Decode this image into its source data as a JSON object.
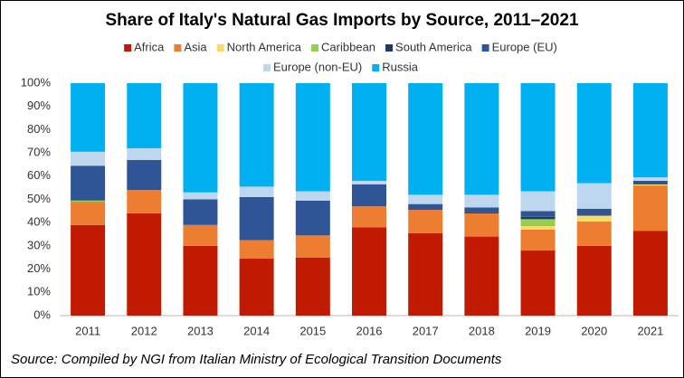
{
  "chart_data": {
    "type": "stacked_bar",
    "title": "Share of Italy's Natural Gas Imports by Source, 2011–2021",
    "source": "Source: Compiled by NGI from Italian Ministry of Ecological Transition Documents",
    "categories": [
      "2011",
      "2012",
      "2013",
      "2014",
      "2015",
      "2016",
      "2017",
      "2018",
      "2019",
      "2020",
      "2021"
    ],
    "series": [
      {
        "name": "Africa",
        "color": "#c01a00",
        "values": [
          39,
          44,
          30,
          24.5,
          25,
          38,
          35.5,
          34,
          28,
          30,
          36.5
        ]
      },
      {
        "name": "Asia",
        "color": "#ed7d31",
        "values": [
          10,
          10,
          9,
          8,
          9.5,
          9,
          10,
          10,
          9,
          10.5,
          19.5
        ]
      },
      {
        "name": "North America",
        "color": "#ffd966",
        "values": [
          0,
          0,
          0,
          0,
          0,
          0,
          0,
          0,
          1.5,
          2.5,
          0.5
        ]
      },
      {
        "name": "Caribbean",
        "color": "#92d050",
        "values": [
          0.5,
          0,
          0,
          0,
          0,
          0,
          0,
          0,
          3,
          0,
          0
        ]
      },
      {
        "name": "South America",
        "color": "#203864",
        "values": [
          0,
          0,
          0,
          0,
          0,
          0,
          0,
          0.5,
          1,
          0,
          0.5
        ]
      },
      {
        "name": "Europe (EU)",
        "color": "#2f5597",
        "values": [
          15,
          13,
          11,
          18.5,
          15,
          9.5,
          2.5,
          2,
          2.5,
          3,
          1
        ]
      },
      {
        "name": "Europe (non-EU)",
        "color": "#bdd7ee",
        "values": [
          6,
          5,
          3,
          4.5,
          4,
          1.5,
          4,
          5.5,
          8.5,
          11,
          1.5
        ]
      },
      {
        "name": "Russia",
        "color": "#00b0f0",
        "values": [
          29.5,
          28,
          47,
          44.5,
          46.5,
          42,
          48,
          48,
          46.5,
          43,
          40.5
        ]
      }
    ],
    "ylim": [
      0,
      100
    ],
    "yticks": [
      {
        "value": 0,
        "label": "0%"
      },
      {
        "value": 10,
        "label": "10%"
      },
      {
        "value": 20,
        "label": "20%"
      },
      {
        "value": 30,
        "label": "30%"
      },
      {
        "value": 40,
        "label": "40%"
      },
      {
        "value": 50,
        "label": "50%"
      },
      {
        "value": 60,
        "label": "60%"
      },
      {
        "value": 70,
        "label": "70%"
      },
      {
        "value": 80,
        "label": "80%"
      },
      {
        "value": 90,
        "label": "90%"
      },
      {
        "value": 100,
        "label": "100%"
      }
    ],
    "grid": false
  }
}
